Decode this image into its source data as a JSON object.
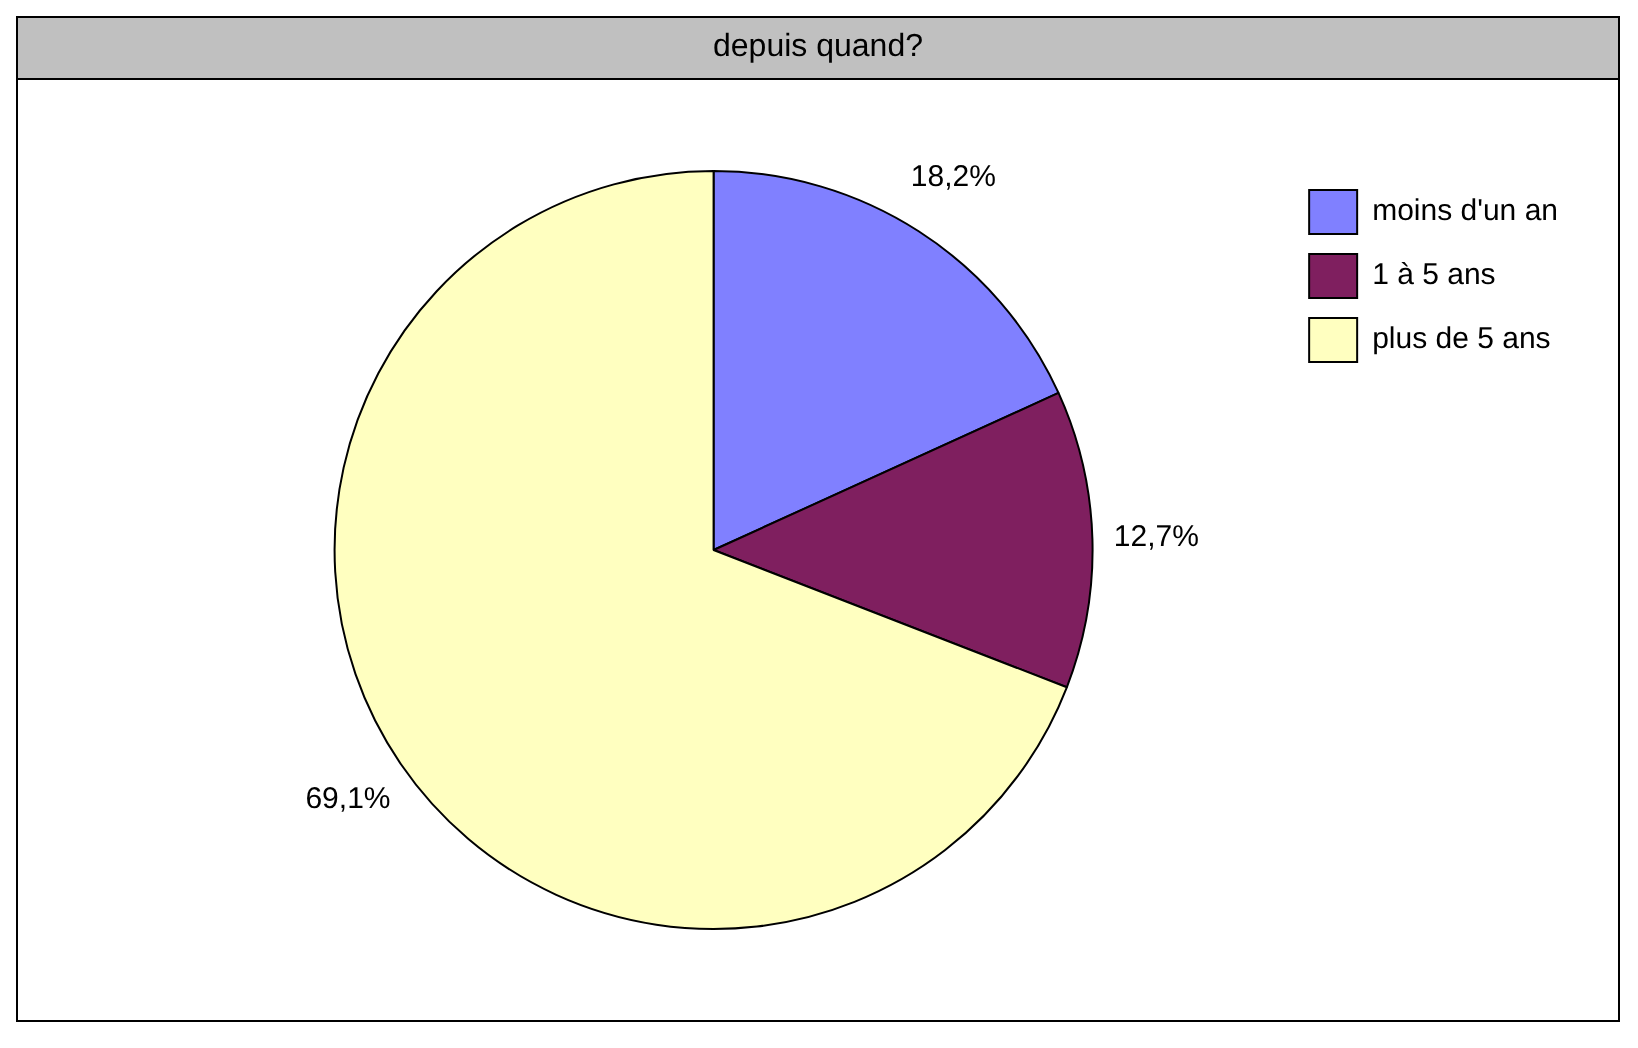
{
  "chart_data": {
    "type": "pie",
    "title": "depuis quand?",
    "categories": [
      "moins d'un an",
      "1 à 5 ans",
      "plus de 5 ans"
    ],
    "values": [
      18.2,
      12.7,
      69.1
    ],
    "colors": [
      "#8080ff",
      "#7f1f5f",
      "#ffffc0"
    ],
    "value_labels": [
      "18,2%",
      "12,7%",
      "69,1%"
    ],
    "legend": "top right"
  }
}
